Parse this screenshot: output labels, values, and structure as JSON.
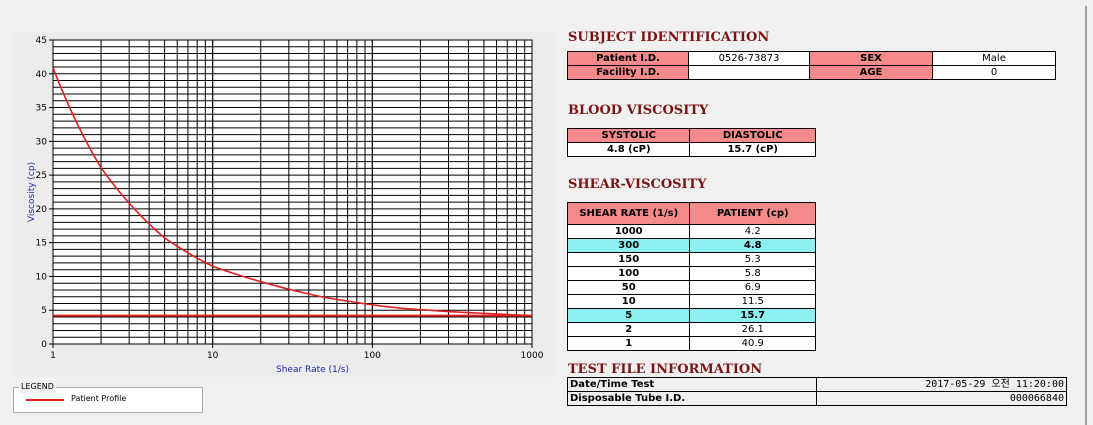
{
  "legend": {
    "title": "LEGEND",
    "series_label": "Patient Profile",
    "series_color": "#e02020"
  },
  "chart_data": {
    "type": "line",
    "xlabel": "Shear Rate (1/s)",
    "ylabel": "Viscosity (cp)",
    "x_scale": "log",
    "xlim": [
      1,
      1000
    ],
    "ylim": [
      0,
      45
    ],
    "x_ticks": [
      "1",
      "10",
      "100",
      "1000"
    ],
    "y_ticks": [
      "0",
      "5",
      "10",
      "15",
      "20",
      "25",
      "30",
      "35",
      "40",
      "45"
    ],
    "grid": true,
    "series": [
      {
        "name": "Patient Profile",
        "color": "#e02020",
        "x": [
          1,
          2,
          5,
          10,
          50,
          100,
          150,
          300,
          1000
        ],
        "values": [
          40.9,
          26.1,
          15.7,
          11.5,
          6.9,
          5.8,
          5.3,
          4.8,
          4.2
        ]
      }
    ],
    "reference_line": {
      "y": 4.2,
      "color": "#e02020"
    }
  },
  "subject": {
    "title": "SUBJECT IDENTIFICATION",
    "patient_id_label": "Patient I.D.",
    "patient_id": "0526-73873",
    "sex_label": "SEX",
    "sex": "Male",
    "facility_id_label": "Facility I.D.",
    "facility_id": "",
    "age_label": "AGE",
    "age": "0"
  },
  "blood": {
    "title": "BLOOD VISCOSITY",
    "systolic_label": "SYSTOLIC",
    "diastolic_label": "DIASTOLIC",
    "systolic": "4.8 (cP)",
    "diastolic": "15.7 (cP)"
  },
  "shear": {
    "title": "SHEAR-VISCOSITY",
    "col_rate": "SHEAR RATE (1/s)",
    "col_patient": "PATIENT (cp)",
    "rows": [
      {
        "rate": "1000",
        "value": "4.2",
        "highlight": false
      },
      {
        "rate": "300",
        "value": "4.8",
        "highlight": true
      },
      {
        "rate": "150",
        "value": "5.3",
        "highlight": false
      },
      {
        "rate": "100",
        "value": "5.8",
        "highlight": false
      },
      {
        "rate": "50",
        "value": "6.9",
        "highlight": false
      },
      {
        "rate": "10",
        "value": "11.5",
        "highlight": false
      },
      {
        "rate": "5",
        "value": "15.7",
        "highlight": true
      },
      {
        "rate": "2",
        "value": "26.1",
        "highlight": false
      },
      {
        "rate": "1",
        "value": "40.9",
        "highlight": false
      }
    ],
    "highlight_color": "#8ef1f1"
  },
  "file_info": {
    "title": "TEST FILE INFORMATION",
    "datetime_label": "Date/Time Test",
    "datetime": "2017-05-29  오전 11:20:00",
    "tube_label": "Disposable Tube I.D.",
    "tube_id": "000066840"
  }
}
